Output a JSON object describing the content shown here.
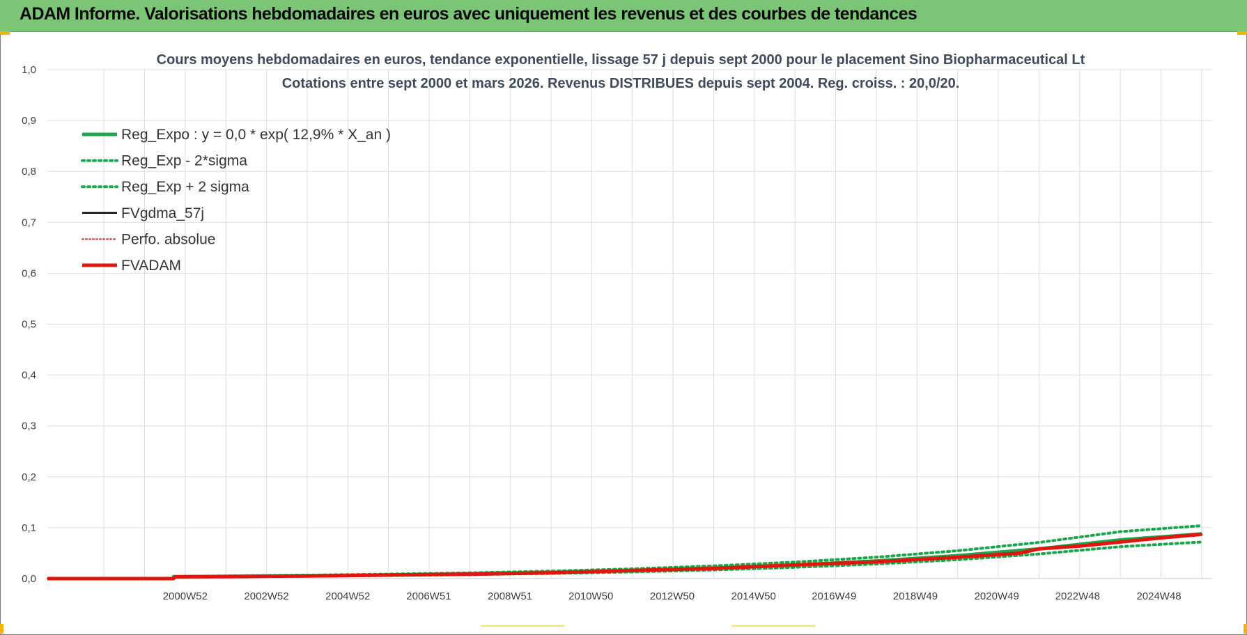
{
  "header": {
    "title": "ADAM Informe. Valorisations hebdomadaires en euros avec uniquement les revenus et des courbes de tendances"
  },
  "colors": {
    "header_bg": "#7cc576",
    "green": "#1aa64a",
    "black": "#000000",
    "red": "#e0160f",
    "grid": "#d9dde3"
  },
  "chart_data": {
    "type": "line",
    "title_lines": [
      "Cours moyens hebdomadaires en euros, tendance exponentielle, lissage 57 j depuis sept 2000 pour le placement Sino Biopharmaceutical Lt",
      "Cotations entre sept 2000 et mars 2026. Revenus DISTRIBUES depuis sept 2004. Reg. croiss. : 20,0/20."
    ],
    "x_tick_labels": [
      "2000W52",
      "2002W52",
      "2004W52",
      "2006W51",
      "2008W51",
      "2010W50",
      "2012W50",
      "2014W50",
      "2016W49",
      "2018W49",
      "2020W49",
      "2022W48",
      "2024W48"
    ],
    "x_tick_years": [
      2000.99,
      2002.99,
      2004.99,
      2006.98,
      2008.98,
      2010.97,
      2012.97,
      2014.97,
      2016.95,
      2018.95,
      2020.95,
      2022.94,
      2024.94
    ],
    "xlim": [
      1997.6,
      2026.25
    ],
    "y_tick_labels": [
      "0,0",
      "0,1",
      "0,2",
      "0,3",
      "0,4",
      "0,5",
      "0,6",
      "0,7",
      "0,8",
      "0,9",
      "1,0"
    ],
    "ylim": [
      0,
      1.0
    ],
    "legend_placement": "top-left",
    "grid": true,
    "series": [
      {
        "name": "Reg_Expo : y = 0,0 * exp( 12,9% *  X_an )",
        "color": "#1aa64a",
        "style": "solid-thick",
        "x": [
          2000.7,
          2002,
          2004,
          2006,
          2008,
          2010,
          2012,
          2014,
          2016,
          2018,
          2020,
          2022,
          2024,
          2026
        ],
        "y": [
          0.0035,
          0.0043,
          0.0056,
          0.0073,
          0.0094,
          0.0122,
          0.0159,
          0.0206,
          0.0268,
          0.0348,
          0.0451,
          0.0586,
          0.0761,
          0.088
        ]
      },
      {
        "name": "Reg_Exp - 2*sigma",
        "color": "#1aa64a",
        "style": "dotted",
        "x": [
          2000.7,
          2002,
          2004,
          2006,
          2008,
          2010,
          2012,
          2014,
          2016,
          2018,
          2020,
          2022,
          2024,
          2026
        ],
        "y": [
          0.0028,
          0.0035,
          0.0046,
          0.006,
          0.0078,
          0.0101,
          0.0131,
          0.017,
          0.0221,
          0.0287,
          0.0372,
          0.0484,
          0.0628,
          0.072
        ]
      },
      {
        "name": "Reg_Exp + 2 sigma",
        "color": "#1aa64a",
        "style": "dotted",
        "x": [
          2000.7,
          2002,
          2004,
          2006,
          2008,
          2010,
          2012,
          2014,
          2016,
          2018,
          2020,
          2022,
          2024,
          2026
        ],
        "y": [
          0.0042,
          0.0052,
          0.0068,
          0.0088,
          0.0114,
          0.0148,
          0.0192,
          0.025,
          0.0325,
          0.0422,
          0.0548,
          0.0711,
          0.0923,
          0.104
        ]
      },
      {
        "name": "FVgdma_57j",
        "color": "#000000",
        "style": "solid",
        "x": [
          1997.6,
          2000.7,
          2000.75,
          2002,
          2004,
          2006,
          2008,
          2010,
          2012,
          2014,
          2016,
          2018,
          2020,
          2021.5,
          2022,
          2023,
          2024,
          2025,
          2026
        ],
        "y": [
          0.0,
          0.0,
          0.0035,
          0.004,
          0.0052,
          0.007,
          0.0088,
          0.0115,
          0.016,
          0.02,
          0.027,
          0.033,
          0.042,
          0.05,
          0.0585,
          0.064,
          0.072,
          0.08,
          0.087
        ]
      },
      {
        "name": "Perfo. absolue",
        "color": "#e0160f",
        "style": "dotted-thin",
        "x": [
          1997.6,
          2000.7,
          2000.75,
          2002,
          2004,
          2006,
          2008,
          2010,
          2012,
          2014,
          2016,
          2018,
          2020,
          2021.5,
          2022,
          2023,
          2024,
          2025,
          2026
        ],
        "y": [
          0.0,
          0.0,
          0.0035,
          0.004,
          0.0051,
          0.0069,
          0.0087,
          0.0114,
          0.0158,
          0.0198,
          0.0268,
          0.0328,
          0.0418,
          0.0498,
          0.0583,
          0.0638,
          0.0718,
          0.0798,
          0.0868
        ]
      },
      {
        "name": "FVADAM",
        "color": "#e0160f",
        "style": "solid-thick",
        "x": [
          1997.6,
          2000.7,
          2000.75,
          2002,
          2004,
          2006,
          2008,
          2010,
          2012,
          2014,
          2016,
          2018,
          2020,
          2021.5,
          2022,
          2023,
          2024,
          2025,
          2026
        ],
        "y": [
          0.0,
          0.0,
          0.0035,
          0.004,
          0.0052,
          0.007,
          0.0088,
          0.0115,
          0.016,
          0.02,
          0.027,
          0.033,
          0.042,
          0.05,
          0.0585,
          0.064,
          0.072,
          0.08,
          0.087
        ]
      }
    ]
  }
}
